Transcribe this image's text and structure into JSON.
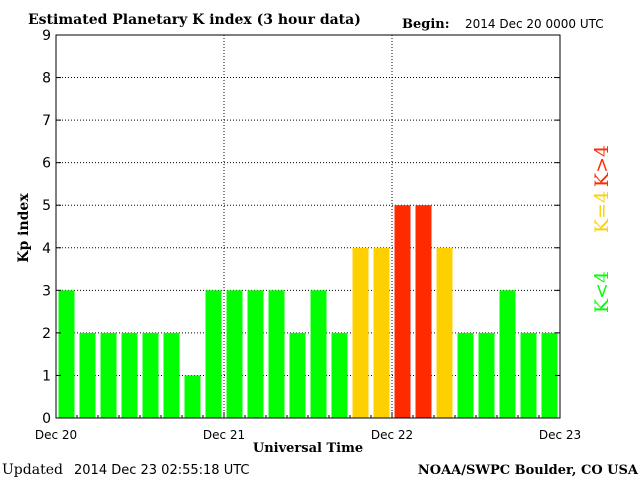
{
  "header": {
    "title": "Estimated Planetary K index (3 hour data)",
    "begin_label": "Begin:",
    "begin_value": "2014 Dec 20 0000 UTC"
  },
  "footer": {
    "updated_label": "Updated",
    "updated_value": "2014 Dec 23 02:55:18 UTC",
    "source": "NOAA/SWPC Boulder, CO USA"
  },
  "legend": {
    "above": "K>4",
    "equal": "K=4",
    "below": "K<4"
  },
  "colors": {
    "below": "#00ff00",
    "equal": "#ffd000",
    "above": "#ff2a00",
    "grid": "#000000"
  },
  "chart_data": {
    "type": "bar",
    "title": "Estimated Planetary K index (3 hour data)",
    "xlabel": "Universal Time",
    "ylabel": "Kp index",
    "ylim": [
      0,
      9
    ],
    "yticks": [
      "0",
      "1",
      "2",
      "3",
      "4",
      "5",
      "6",
      "7",
      "8",
      "9"
    ],
    "xticks": [
      "Dec 20",
      "Dec 21",
      "Dec 22",
      "Dec 23"
    ],
    "grid": true,
    "values": [
      3,
      2,
      2,
      2,
      2,
      2,
      1,
      3,
      3,
      3,
      3,
      2,
      3,
      2,
      4,
      4,
      5,
      5,
      4,
      2,
      2,
      3,
      2,
      2
    ]
  }
}
